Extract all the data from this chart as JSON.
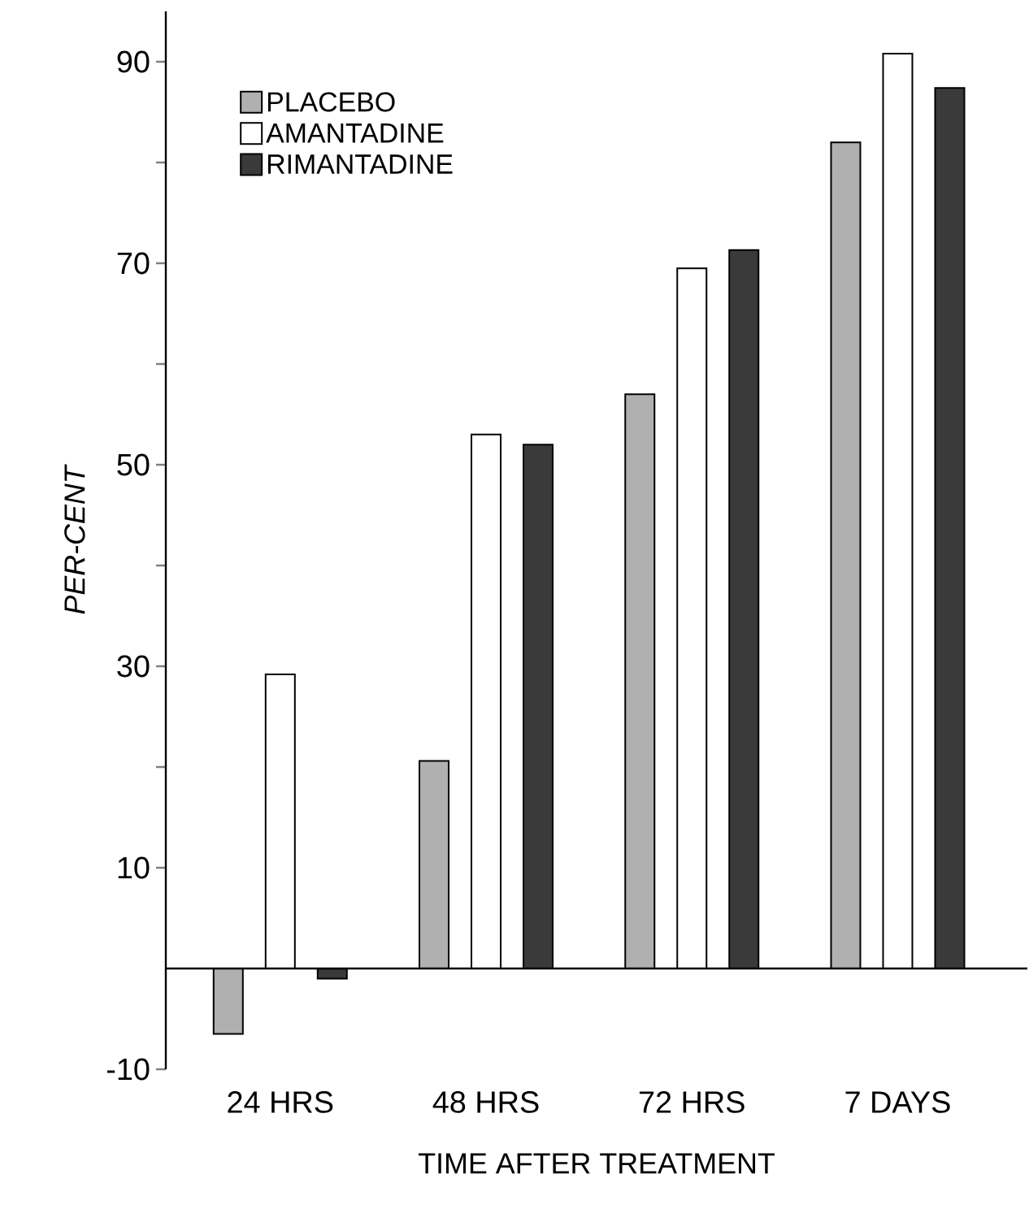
{
  "chart_data": {
    "type": "bar",
    "xlabel": "TIME   AFTER   TREATMENT",
    "ylabel": "PER-CENT",
    "categories": [
      "24 HRS",
      "48 HRS",
      "72 HRS",
      "7 DAYS"
    ],
    "series": [
      {
        "name": "PLACEBO",
        "color": "#b0b0b0",
        "values": [
          -6.5,
          20.6,
          57,
          82
        ]
      },
      {
        "name": "AMANTADINE",
        "color": "#ffffff",
        "values": [
          29.2,
          53,
          69.5,
          90.8
        ]
      },
      {
        "name": "RIMANTADINE",
        "color": "#3a3a3a",
        "values": [
          -1,
          52,
          71.3,
          87.4
        ]
      }
    ],
    "ylim": [
      -10,
      95
    ],
    "yticks": [
      -10,
      10,
      {
        "value": 20,
        "label": null
      },
      30,
      {
        "value": 40,
        "label": null
      },
      50,
      {
        "value": 60,
        "label": null
      },
      70,
      {
        "value": 80,
        "label": null
      },
      90
    ],
    "legend": "top left",
    "grid": false
  }
}
